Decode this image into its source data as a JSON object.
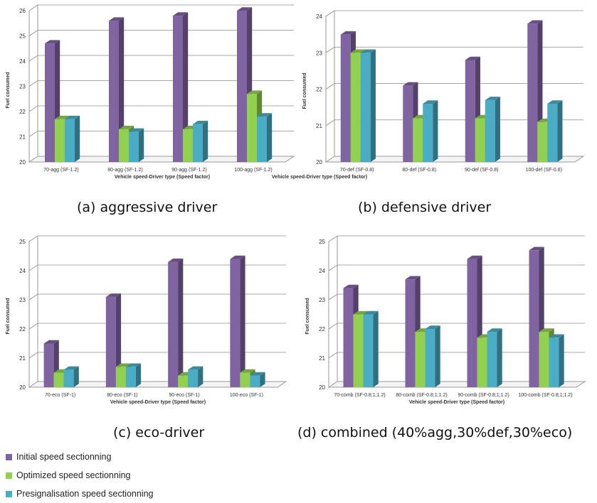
{
  "captions": [
    "(a) aggressive driver",
    "(b) defensive driver",
    "(c) eco-driver",
    "(d) combined (40%agg,30%def,30%eco)"
  ],
  "legend": [
    {
      "label": "Initial speed sectionning",
      "color": "#8064a2"
    },
    {
      "label": "Optimized speed sectionning",
      "color": "#92d050"
    },
    {
      "label": "Presignalisation speed sectionning",
      "color": "#4bacc6"
    }
  ],
  "chart_data": [
    {
      "type": "bar",
      "categories": [
        "70-agg (SF-1.2)",
        "80-agg (SF-1.2)",
        "90-agg (SF-1.2)",
        "100-agg (SF-1.2)"
      ],
      "series": [
        {
          "name": "Initial speed sectionning",
          "values": [
            24.7,
            25.6,
            25.8,
            26.0
          ]
        },
        {
          "name": "Optimized speed sectionning",
          "values": [
            21.7,
            21.3,
            21.3,
            22.7
          ]
        },
        {
          "name": "Presignalisation speed sectionning",
          "values": [
            21.7,
            21.2,
            21.5,
            21.8
          ]
        }
      ],
      "xlabel": "Vehicle speed-Driver type (Speed factor)",
      "ylabel": "Fuel consumed",
      "ylim": [
        20,
        26
      ],
      "yticks": [
        20,
        21,
        22,
        23,
        24,
        25,
        26
      ],
      "grid": true
    },
    {
      "type": "bar",
      "categories": [
        "70-def (SF-0.8)",
        "80-def (SF-0.8)",
        "90-def (SF-0.8)",
        "100-def (SF-0.8)"
      ],
      "series": [
        {
          "name": "Initial speed sectionning",
          "values": [
            23.5,
            22.1,
            22.8,
            23.8
          ]
        },
        {
          "name": "Optimized speed sectionning",
          "values": [
            23.0,
            21.2,
            21.2,
            21.1
          ]
        },
        {
          "name": "Presignalisation speed sectionning",
          "values": [
            23.0,
            21.6,
            21.7,
            21.6
          ]
        }
      ],
      "xlabel": "Vehicle speed-Driver type (Speed factor)",
      "ylabel": "Fuel consumed",
      "ylim": [
        20,
        24
      ],
      "yticks": [
        20,
        21,
        22,
        23,
        24
      ],
      "grid": true
    },
    {
      "type": "bar",
      "categories": [
        "70-eco (SF-1)",
        "80-eco (SF-1)",
        "90-eco (SF-1)",
        "100-eco (SF-1)"
      ],
      "series": [
        {
          "name": "Initial speed sectionning",
          "values": [
            21.5,
            23.1,
            24.3,
            24.4
          ]
        },
        {
          "name": "Optimized speed sectionning",
          "values": [
            20.5,
            20.7,
            20.4,
            20.5
          ]
        },
        {
          "name": "Presignalisation speed sectionning",
          "values": [
            20.6,
            20.7,
            20.6,
            20.4
          ]
        }
      ],
      "xlabel": "Vehicle speed-Driver type (Speed factor)",
      "ylabel": "Fuel consumed",
      "ylim": [
        20,
        25
      ],
      "yticks": [
        20,
        21,
        22,
        23,
        24,
        25
      ],
      "grid": true
    },
    {
      "type": "bar",
      "categories": [
        "70-comb (SF-0.8;1;1.2)",
        "80-comb (SF-0.8;1;1.2)",
        "90-comb (SF-0.8;1;1.2)",
        "100-comb (SF-0.8;1;1.2)"
      ],
      "series": [
        {
          "name": "Initial speed sectionning",
          "values": [
            23.4,
            23.7,
            24.4,
            24.7
          ]
        },
        {
          "name": "Optimized speed sectionning",
          "values": [
            22.5,
            21.9,
            21.7,
            21.9
          ]
        },
        {
          "name": "Presignalisation speed sectionning",
          "values": [
            22.5,
            22.0,
            21.9,
            21.7
          ]
        }
      ],
      "xlabel": "Vehicle speed-Driver type (Speed factor)",
      "ylabel": "Fuel consumed",
      "ylim": [
        20,
        25
      ],
      "yticks": [
        20,
        21,
        22,
        23,
        24,
        25
      ],
      "grid": true
    }
  ]
}
